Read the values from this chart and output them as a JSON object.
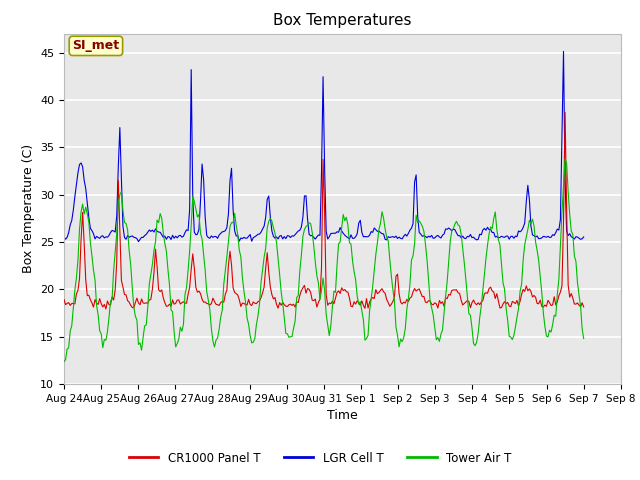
{
  "title": "Box Temperatures",
  "xlabel": "Time",
  "ylabel": "Box Temperature (C)",
  "ylim": [
    10,
    47
  ],
  "yticks": [
    10,
    15,
    20,
    25,
    30,
    35,
    40,
    45
  ],
  "plot_bg_color": "#e8e8e8",
  "band_color": "#d0d0d0",
  "grid_color": "white",
  "annotation_text": "SI_met",
  "annotation_bg": "#ffffcc",
  "annotation_border": "#999900",
  "annotation_text_color": "#880000",
  "line_colors": {
    "panel": "#dd0000",
    "lgr": "#0000dd",
    "tower": "#00bb00"
  },
  "legend_labels": [
    "CR1000 Panel T",
    "LGR Cell T",
    "Tower Air T"
  ],
  "x_tick_labels": [
    "Aug 24",
    "Aug 25",
    "Aug 26",
    "Aug 27",
    "Aug 28",
    "Aug 29",
    "Aug 30",
    "Aug 31",
    "Sep 1",
    "Sep 2",
    "Sep 3",
    "Sep 4",
    "Sep 5",
    "Sep 6",
    "Sep 7",
    "Sep 8"
  ],
  "n_points": 336
}
